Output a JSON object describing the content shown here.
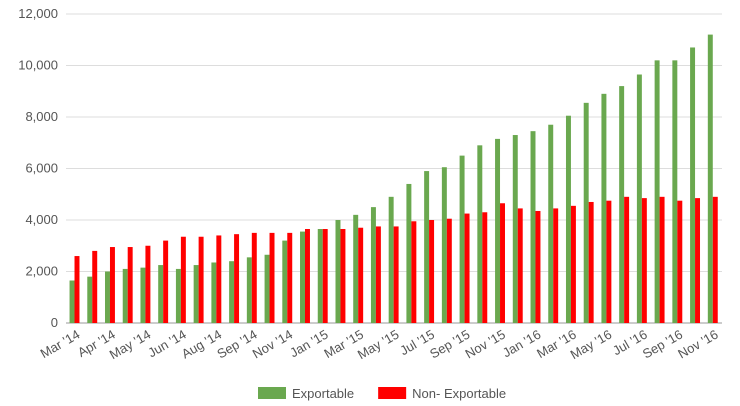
{
  "chart_data": {
    "type": "bar",
    "categories": [
      "Mar '14",
      null,
      "Apr '14",
      null,
      "May '14",
      null,
      "Jun '14",
      null,
      "Aug '14",
      null,
      "Sep '14",
      null,
      "Nov '14",
      null,
      "Jan '15",
      null,
      "Mar '15",
      null,
      "May '15",
      null,
      "Jul '15",
      null,
      "Sep '15",
      null,
      "Nov '15",
      null,
      "Jan '16",
      null,
      "Mar '16",
      null,
      "May '16",
      null,
      "Jul '16",
      null,
      "Sep '16",
      null,
      "Nov '16"
    ],
    "series": [
      {
        "name": "Exportable",
        "color": "#6aa84f",
        "values": [
          1650,
          1800,
          2000,
          2100,
          2150,
          2250,
          2100,
          2250,
          2350,
          2400,
          2550,
          2650,
          3200,
          3550,
          3650,
          4000,
          4200,
          4500,
          4900,
          5400,
          5900,
          6050,
          6500,
          6900,
          7150,
          7300,
          7450,
          7700,
          8050,
          8550,
          8900,
          9200,
          9650,
          10200,
          10200,
          10700,
          11200
        ]
      },
      {
        "name": "Non- Exportable",
        "color": "#ff0000",
        "values": [
          2600,
          2800,
          2950,
          2950,
          3000,
          3200,
          3350,
          3350,
          3400,
          3450,
          3500,
          3500,
          3500,
          3650,
          3650,
          3650,
          3700,
          3750,
          3750,
          3950,
          4000,
          4050,
          4250,
          4300,
          4650,
          4450,
          4350,
          4450,
          4550,
          4700,
          4750,
          4900,
          4850,
          4900,
          4750,
          4850,
          4900
        ]
      }
    ],
    "ylim": [
      0,
      12000
    ],
    "yticks": [
      0,
      {
        "value": 2000,
        "label": "2,000"
      },
      {
        "value": 4000,
        "label": "4,000"
      },
      {
        "value": 6000,
        "label": "6,000"
      },
      {
        "value": 8000,
        "label": "8,000"
      },
      {
        "value": 10000,
        "label": "10,000"
      },
      {
        "value": 12000,
        "label": "12,000"
      }
    ],
    "grid": true,
    "legend": "bottom"
  }
}
